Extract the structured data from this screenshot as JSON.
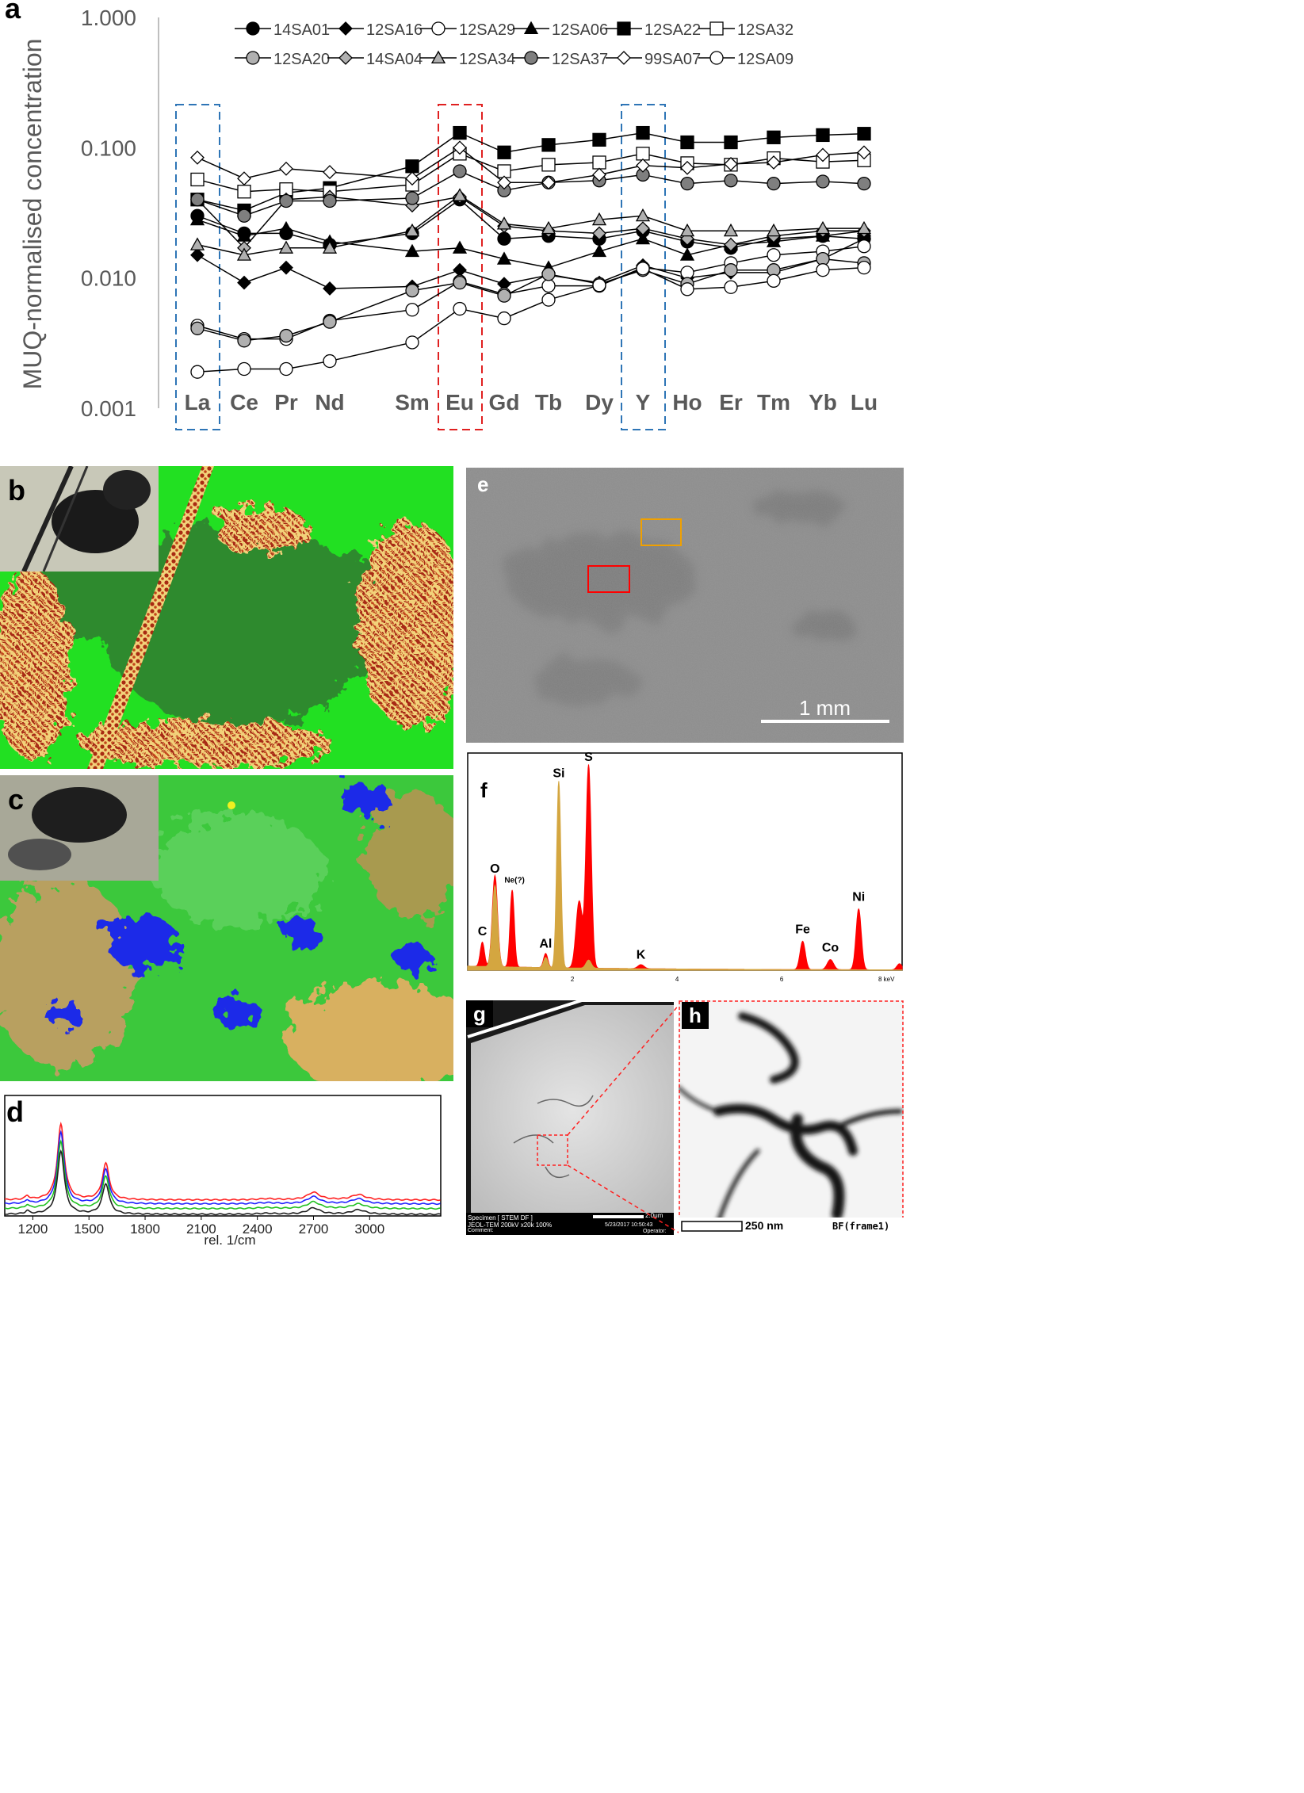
{
  "panels": {
    "a": {
      "label": "a"
    },
    "b": {
      "label": "b"
    },
    "c": {
      "label": "c"
    },
    "d": {
      "label": "d"
    },
    "e": {
      "label": "e",
      "scale_bar": "1 mm"
    },
    "f": {
      "label": "f"
    },
    "g": {
      "label": "g",
      "footer_left_1": "Specimen [ STEM DF ]",
      "footer_left_2": "JEOL-TEM 200kV x20k 100%",
      "footer_left_3": "Comment:",
      "scale_bar": "2.0μm",
      "footer_right_1": "5/23/2017 10:50:43",
      "footer_right_2": "Operator:"
    },
    "h": {
      "label": "h",
      "scale_bar": "250 nm",
      "frame": "BF(frame1)"
    }
  },
  "chart_data": [
    {
      "panel": "a",
      "type": "line",
      "ylabel": "MUQ-normalised concentration",
      "yscale": "log",
      "ylim": [
        0.001,
        1.0
      ],
      "yticks": [
        "1.000",
        "0.100",
        "0.010",
        "0.001"
      ],
      "categories": [
        "La",
        "Ce",
        "Pr",
        "Nd",
        "Sm",
        "Eu",
        "Gd",
        "Tb",
        "Dy",
        "Y",
        "Ho",
        "Er",
        "Tm",
        "Yb",
        "Lu"
      ],
      "highlight_boxes": [
        {
          "category": "La",
          "color": "#2e75b6"
        },
        {
          "category": "Eu",
          "color": "#e02020"
        },
        {
          "category": "Y",
          "color": "#2e75b6"
        }
      ],
      "legend": "top",
      "series": [
        {
          "name": "14SA01",
          "marker": "circle",
          "fill": "#000000",
          "values": [
            0.03,
            0.022,
            0.022,
            0.018,
            0.022,
            0.04,
            0.02,
            0.021,
            0.02,
            0.023,
            0.019,
            0.017,
            0.02,
            0.021,
            0.02
          ]
        },
        {
          "name": "12SA16",
          "marker": "diamond",
          "fill": "#000000",
          "values": [
            0.015,
            0.0092,
            0.012,
            0.0083,
            0.0086,
            0.0115,
            0.009,
            0.0105,
            0.0092,
            0.0125,
            0.01,
            0.011,
            0.011,
            0.014,
            0.02
          ]
        },
        {
          "name": "12SA29",
          "marker": "circle",
          "fill": "#ffffff",
          "values": [
            0.0043,
            0.0034,
            0.0034,
            0.0047,
            0.0057,
            0.0094,
            0.0075,
            0.0087,
            0.0087,
            0.012,
            0.011,
            0.013,
            0.015,
            0.016,
            0.0175
          ]
        },
        {
          "name": "12SA06",
          "marker": "triangle",
          "fill": "#000000",
          "values": [
            0.028,
            0.021,
            0.024,
            0.019,
            0.016,
            0.017,
            0.014,
            0.012,
            0.016,
            0.02,
            0.015,
            0.018,
            0.019,
            0.021,
            0.023
          ]
        },
        {
          "name": "12SA22",
          "marker": "square",
          "fill": "#000000",
          "values": [
            0.04,
            0.033,
            0.045,
            0.049,
            0.072,
            0.13,
            0.092,
            0.105,
            0.115,
            0.13,
            0.11,
            0.11,
            0.12,
            0.125,
            0.128
          ]
        },
        {
          "name": "12SA32",
          "marker": "square",
          "fill": "#ffffff",
          "values": [
            0.057,
            0.046,
            0.048,
            0.046,
            0.052,
            0.09,
            0.066,
            0.074,
            0.077,
            0.09,
            0.076,
            0.074,
            0.083,
            0.078,
            0.08
          ]
        },
        {
          "name": "12SA20",
          "marker": "circle",
          "fill": "#b0b0b0",
          "values": [
            0.0041,
            0.0033,
            0.0036,
            0.0046,
            0.008,
            0.0092,
            0.0073,
            0.0107,
            0.009,
            0.0115,
            0.009,
            0.0115,
            0.0115,
            0.014,
            0.013
          ]
        },
        {
          "name": "14SA04",
          "marker": "diamond",
          "fill": "#b0b0b0",
          "values": [
            0.04,
            0.017,
            0.04,
            0.042,
            0.036,
            0.042,
            0.025,
            0.023,
            0.022,
            0.024,
            0.02,
            0.018,
            0.021,
            0.023,
            0.023
          ]
        },
        {
          "name": "12SA34",
          "marker": "triangle",
          "fill": "#b0b0b0",
          "values": [
            0.018,
            0.015,
            0.017,
            0.017,
            0.023,
            0.043,
            0.026,
            0.024,
            0.028,
            0.03,
            0.023,
            0.023,
            0.023,
            0.024,
            0.024
          ]
        },
        {
          "name": "12SA37",
          "marker": "circle",
          "fill": "#7f7f7f",
          "values": [
            0.04,
            0.03,
            0.039,
            0.039,
            0.041,
            0.066,
            0.047,
            0.054,
            0.056,
            0.062,
            0.053,
            0.056,
            0.053,
            0.055,
            0.053
          ]
        },
        {
          "name": "99SA07",
          "marker": "diamond",
          "fill": "#ffffff",
          "values": [
            0.084,
            0.058,
            0.069,
            0.065,
            0.058,
            0.1,
            0.054,
            0.054,
            0.062,
            0.073,
            0.07,
            0.075,
            0.077,
            0.088,
            0.092
          ]
        },
        {
          "name": "12SA09",
          "marker": "circle",
          "fill": "#ffffff",
          "values": [
            0.0019,
            0.002,
            0.002,
            0.0023,
            0.0032,
            0.0058,
            0.0049,
            0.0068,
            0.0088,
            0.0118,
            0.0082,
            0.0085,
            0.0095,
            0.0115,
            0.012
          ]
        }
      ]
    },
    {
      "panel": "d",
      "type": "line",
      "xlabel": "rel. 1/cm",
      "xticks": [
        1200,
        1500,
        1800,
        2100,
        2400,
        2700,
        3000
      ],
      "xlim": [
        1050,
        3380
      ],
      "series": [
        {
          "color": "#ff2020",
          "offset": 0.33
        },
        {
          "color": "#2020ff",
          "offset": 0.24
        },
        {
          "color": "#20c020",
          "offset": 0.13
        },
        {
          "color": "#202020",
          "offset": 0.0
        }
      ],
      "peaks_x": [
        1170,
        1350,
        1590,
        2700,
        2940
      ]
    },
    {
      "panel": "f",
      "type": "area",
      "xticks": [
        "2",
        "4",
        "6",
        "8 keV"
      ],
      "xlim": [
        0,
        8.3
      ],
      "peak_labels": [
        {
          "label": "C",
          "x": 0.28
        },
        {
          "label": "O",
          "x": 0.52
        },
        {
          "label": "Ne(?)",
          "x": 0.85
        },
        {
          "label": "Al",
          "x": 1.49
        },
        {
          "label": "Si",
          "x": 1.74
        },
        {
          "label": "S",
          "x": 2.31
        },
        {
          "label": "K",
          "x": 3.31
        },
        {
          "label": "Fe",
          "x": 6.4
        },
        {
          "label": "Co",
          "x": 6.93
        },
        {
          "label": "Ni",
          "x": 7.47
        }
      ],
      "series": [
        {
          "color": "#ff0000"
        },
        {
          "color": "#d4a640"
        }
      ]
    }
  ]
}
